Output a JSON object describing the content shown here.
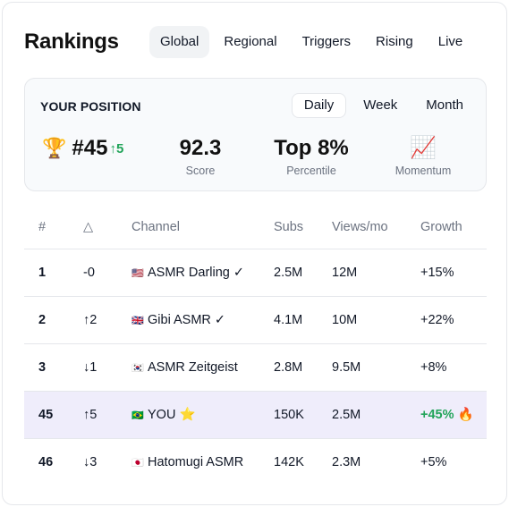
{
  "header": {
    "title": "Rankings",
    "tabs": [
      {
        "label": "Global",
        "active": true
      },
      {
        "label": "Regional",
        "active": false
      },
      {
        "label": "Triggers",
        "active": false
      },
      {
        "label": "Rising",
        "active": false
      },
      {
        "label": "Live",
        "active": false
      }
    ]
  },
  "position": {
    "label": "YOUR POSITION",
    "periods": [
      {
        "label": "Daily",
        "active": true
      },
      {
        "label": "Week",
        "active": false
      },
      {
        "label": "Month",
        "active": false
      }
    ],
    "trophy_icon": "🏆",
    "rank": "#45",
    "rank_change": "↑5",
    "score": {
      "value": "92.3",
      "label": "Score"
    },
    "percentile": {
      "value": "Top 8%",
      "label": "Percentile"
    },
    "momentum": {
      "icon": "📈",
      "label": "Momentum"
    }
  },
  "table": {
    "headers": {
      "rank": "#",
      "delta": "△",
      "channel": "Channel",
      "subs": "Subs",
      "views": "Views/mo",
      "growth": "Growth"
    },
    "rows": [
      {
        "rank": "1",
        "delta": "-0",
        "trend": "neutral",
        "flag": "🇺🇸",
        "channel": "ASMR Darling ✓",
        "subs": "2.5M",
        "views": "12M",
        "growth": "+15%"
      },
      {
        "rank": "2",
        "delta": "↑2",
        "trend": "up",
        "flag": "🇬🇧",
        "channel": "Gibi ASMR ✓",
        "subs": "4.1M",
        "views": "10M",
        "growth": "+22%"
      },
      {
        "rank": "3",
        "delta": "↓1",
        "trend": "down",
        "flag": "🇰🇷",
        "channel": "ASMR Zeitgeist",
        "subs": "2.8M",
        "views": "9.5M",
        "growth": "+8%"
      },
      {
        "rank": "45",
        "delta": "↑5",
        "trend": "up",
        "flag": "🇧🇷",
        "channel": "YOU ⭐",
        "subs": "150K",
        "views": "2.5M",
        "growth": "+45% 🔥",
        "highlight": true
      },
      {
        "rank": "46",
        "delta": "↓3",
        "trend": "down",
        "flag": "🇯🇵",
        "channel": "Hatomugi ASMR",
        "subs": "142K",
        "views": "2.3M",
        "growth": "+5%"
      }
    ]
  },
  "colors": {
    "up": "#22a45a",
    "down": "#dc4a3a",
    "highlight_row": "#efedfb",
    "active_tab": "#f1f3f5"
  }
}
